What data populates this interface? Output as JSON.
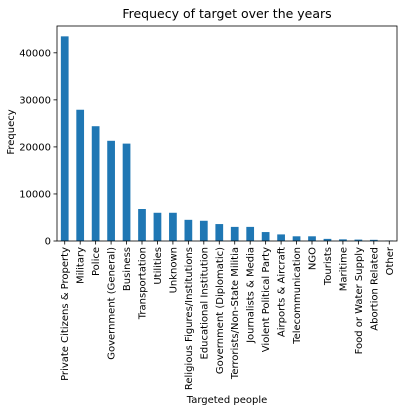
{
  "chart_data": {
    "type": "bar",
    "title": "Frequecy of  target  over the years",
    "xlabel": "Targeted people",
    "ylabel": "Frequecy",
    "ylim": [
      0,
      45700
    ],
    "yticks": [
      0,
      10000,
      20000,
      30000,
      40000
    ],
    "grid": false,
    "legend": "none",
    "bar_color": "#1f77b4",
    "categories": [
      "Private Citizens & Property",
      "Military",
      "Police",
      "Government (General)",
      "Business",
      "Transportation",
      "Utilities",
      "Unknown",
      "Religious Figures/Institutions",
      "Educational Institution",
      "Government (Diplomatic)",
      "Terrorists/Non-State Militia",
      "Journalists & Media",
      "Violent Political Party",
      "Airports & Aircraft",
      "Telecommunication",
      "NGO",
      "Tourists",
      "Maritime",
      "Food or Water Supply",
      "Abortion Related",
      "Other"
    ],
    "values": [
      43500,
      27900,
      24400,
      21300,
      20700,
      6800,
      6000,
      6000,
      4500,
      4300,
      3600,
      3000,
      3000,
      1900,
      1400,
      1000,
      1000,
      450,
      350,
      300,
      250,
      100
    ]
  }
}
